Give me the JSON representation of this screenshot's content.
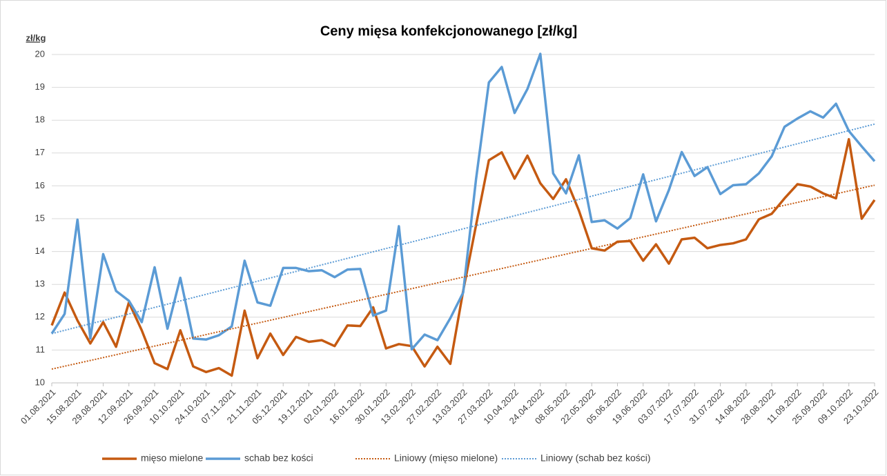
{
  "chart_data": {
    "type": "line",
    "title": "Ceny mięsa konfekcjonowanego [zł/kg]",
    "y_label": "zł/kg",
    "categories": [
      "01.08.2021",
      null,
      "15.08.2021",
      null,
      "29.08.2021",
      null,
      "12.09.2021",
      null,
      "26.09.2021",
      null,
      "10.10.2021",
      null,
      "24.10.2021",
      null,
      "07.11.2021",
      null,
      "21.11.2021",
      null,
      "05.12.2021",
      null,
      "19.12.2021",
      null,
      "02.01.2022",
      null,
      "16.01.2022",
      null,
      "30.01.2022",
      null,
      "13.02.2022",
      null,
      "27.02.2022",
      null,
      "13.03.2022",
      null,
      "27.03.2022",
      null,
      "10.04.2022",
      null,
      "24.04.2022",
      null,
      "08.05.2022",
      null,
      "22.05.2022",
      null,
      "05.06.2022",
      null,
      "19.06.2022",
      null,
      "03.07.2022",
      null,
      "17.07.2022",
      null,
      "31.07.2022",
      null,
      "14.08.2022",
      null,
      "28.08.2022",
      null,
      "11.09.2022",
      null,
      "25.09.2022",
      null,
      "09.10.2022",
      null,
      "23.10.2022"
    ],
    "series": [
      {
        "name": "mięso mielone",
        "color": "#c55a11",
        "values": [
          11.75,
          12.75,
          11.9,
          11.2,
          11.85,
          11.1,
          12.45,
          11.6,
          10.6,
          10.42,
          11.6,
          10.5,
          10.33,
          10.45,
          10.22,
          12.2,
          10.75,
          11.5,
          10.85,
          11.4,
          11.25,
          11.3,
          11.12,
          11.75,
          11.73,
          12.3,
          11.05,
          11.18,
          11.12,
          10.5,
          11.1,
          10.58,
          12.8,
          14.8,
          16.78,
          17.02,
          16.22,
          16.92,
          16.08,
          15.6,
          16.2,
          15.25,
          14.1,
          14.03,
          14.3,
          14.32,
          13.72,
          14.22,
          13.63,
          14.37,
          14.42,
          14.1,
          14.2,
          14.25,
          14.37,
          14.98,
          15.15,
          15.62,
          16.05,
          15.98,
          15.77,
          15.62,
          17.42,
          15.0,
          15.57
        ]
      },
      {
        "name": "schab bez kości",
        "color": "#5b9bd5",
        "values": [
          11.5,
          12.1,
          14.97,
          11.35,
          13.92,
          12.8,
          12.5,
          11.85,
          13.52,
          11.65,
          13.2,
          11.35,
          11.32,
          11.45,
          11.72,
          13.72,
          12.45,
          12.35,
          13.5,
          13.5,
          13.4,
          13.43,
          13.22,
          13.45,
          13.47,
          12.05,
          12.2,
          14.77,
          11.02,
          11.47,
          11.3,
          11.97,
          12.75,
          16.2,
          19.15,
          19.62,
          18.22,
          18.95,
          20.02,
          16.38,
          15.77,
          16.93,
          14.9,
          14.95,
          14.7,
          15.02,
          16.35,
          14.92,
          15.87,
          17.03,
          16.3,
          16.57,
          15.75,
          16.02,
          16.05,
          16.38,
          16.9,
          17.8,
          18.05,
          18.27,
          18.08,
          18.5,
          17.67,
          17.2,
          16.75
        ]
      }
    ],
    "trendlines": [
      {
        "name": "Liniowy (mięso mielone)",
        "color": "#c55a11",
        "dash": "dotted",
        "values": [
          10.42,
          16.02
        ]
      },
      {
        "name": "Liniowy (schab bez kości)",
        "color": "#5b9bd5",
        "dash": "dotted",
        "values": [
          11.5,
          17.88
        ]
      }
    ],
    "ylim": [
      10,
      20
    ],
    "yticks": [
      10,
      11,
      12,
      13,
      14,
      15,
      16,
      17,
      18,
      19,
      20
    ],
    "grid": true
  }
}
